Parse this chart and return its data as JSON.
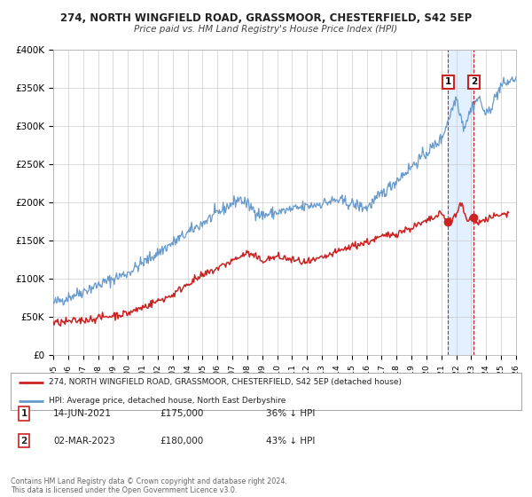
{
  "title": "274, NORTH WINGFIELD ROAD, GRASSMOOR, CHESTERFIELD, S42 5EP",
  "subtitle": "Price paid vs. HM Land Registry's House Price Index (HPI)",
  "legend_line1": "274, NORTH WINGFIELD ROAD, GRASSMOOR, CHESTERFIELD, S42 5EP (detached house)",
  "legend_line2": "HPI: Average price, detached house, North East Derbyshire",
  "annotation1_label": "1",
  "annotation1_date": "14-JUN-2021",
  "annotation1_price": "£175,000",
  "annotation1_hpi": "36% ↓ HPI",
  "annotation1_value": 175000,
  "annotation1_year": 2021.45,
  "annotation2_label": "2",
  "annotation2_date": "02-MAR-2023",
  "annotation2_price": "£180,000",
  "annotation2_hpi": "43% ↓ HPI",
  "annotation2_value": 180000,
  "annotation2_year": 2023.17,
  "footer": "Contains HM Land Registry data © Crown copyright and database right 2024.\nThis data is licensed under the Open Government Licence v3.0.",
  "hpi_color": "#6699cc",
  "price_color": "#cc2222",
  "marker_color": "#cc2222",
  "bg_color": "#ffffff",
  "grid_color": "#cccccc",
  "highlight_color": "#ddeeff",
  "xlim": [
    1995,
    2026
  ],
  "ylim": [
    0,
    400000
  ],
  "yticks": [
    0,
    50000,
    100000,
    150000,
    200000,
    250000,
    300000,
    350000,
    400000
  ],
  "ytick_labels": [
    "£0",
    "£50K",
    "£100K",
    "£150K",
    "£200K",
    "£250K",
    "£300K",
    "£350K",
    "£400K"
  ]
}
